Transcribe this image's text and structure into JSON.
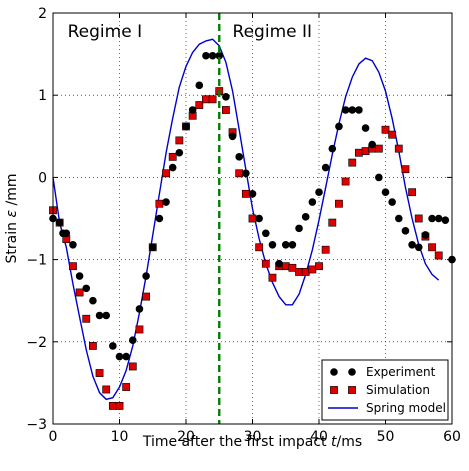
{
  "chart_data": {
    "type": "line",
    "title": "",
    "xlabel_text": "Time after the first impact ",
    "xlabel_symbol": "t",
    "xlabel_unit": "/ms",
    "ylabel_text": "Strain ",
    "ylabel_symbol": "ε",
    "ylabel_unit": " /mm",
    "xlim": [
      0,
      60
    ],
    "ylim": [
      -3,
      2
    ],
    "xticks": [
      "0",
      "10",
      "20",
      "30",
      "40",
      "50",
      "60"
    ],
    "yticks": [
      "−3",
      "−2",
      "−1",
      "0",
      "1",
      "2"
    ],
    "grid": true,
    "legend_position": "bottom-right",
    "divider": {
      "x": 25,
      "color": "#008000"
    },
    "regions": [
      {
        "label": "Regime I",
        "x": 2.2
      },
      {
        "label": "Regime II",
        "x": 27
      }
    ],
    "series": [
      {
        "name": "Experiment",
        "marker": "circle",
        "color": "#000000",
        "points": [
          [
            0,
            -0.5
          ],
          [
            1,
            -0.55
          ],
          [
            1.5,
            -0.68
          ],
          [
            2,
            -0.68
          ],
          [
            3,
            -0.82
          ],
          [
            4,
            -1.2
          ],
          [
            5,
            -1.35
          ],
          [
            6,
            -1.5
          ],
          [
            7,
            -1.68
          ],
          [
            8,
            -1.68
          ],
          [
            9,
            -2.05
          ],
          [
            10,
            -2.18
          ],
          [
            11,
            -2.18
          ],
          [
            12,
            -1.98
          ],
          [
            13,
            -1.6
          ],
          [
            14,
            -1.2
          ],
          [
            15,
            -0.85
          ],
          [
            16,
            -0.5
          ],
          [
            17,
            -0.3
          ],
          [
            18,
            0.12
          ],
          [
            19,
            0.3
          ],
          [
            20,
            0.62
          ],
          [
            21,
            0.82
          ],
          [
            22,
            1.12
          ],
          [
            23,
            1.48
          ],
          [
            24,
            1.48
          ],
          [
            25,
            1.48
          ],
          [
            26,
            0.98
          ],
          [
            27,
            0.5
          ],
          [
            28,
            0.25
          ],
          [
            29,
            0.05
          ],
          [
            30,
            -0.2
          ],
          [
            31,
            -0.5
          ],
          [
            32,
            -0.68
          ],
          [
            33,
            -0.82
          ],
          [
            34,
            -1.05
          ],
          [
            35,
            -0.82
          ],
          [
            36,
            -0.82
          ],
          [
            37,
            -0.62
          ],
          [
            38,
            -0.48
          ],
          [
            39,
            -0.3
          ],
          [
            40,
            -0.18
          ],
          [
            41,
            0.12
          ],
          [
            42,
            0.35
          ],
          [
            43,
            0.62
          ],
          [
            44,
            0.82
          ],
          [
            45,
            0.82
          ],
          [
            46,
            0.82
          ],
          [
            47,
            0.6
          ],
          [
            48,
            0.4
          ],
          [
            49,
            0.0
          ],
          [
            50,
            -0.18
          ],
          [
            51,
            -0.3
          ],
          [
            52,
            -0.5
          ],
          [
            53,
            -0.65
          ],
          [
            54,
            -0.82
          ],
          [
            55,
            -0.85
          ],
          [
            56,
            -0.7
          ],
          [
            57,
            -0.5
          ],
          [
            58,
            -0.5
          ],
          [
            59,
            -0.52
          ],
          [
            60,
            -1.0
          ]
        ]
      },
      {
        "name": "Simulation",
        "marker": "square",
        "color": "#dd0000",
        "points": [
          [
            0,
            -0.4
          ],
          [
            1,
            -0.55
          ],
          [
            2,
            -0.75
          ],
          [
            3,
            -1.08
          ],
          [
            4,
            -1.4
          ],
          [
            5,
            -1.72
          ],
          [
            6,
            -2.05
          ],
          [
            7,
            -2.38
          ],
          [
            8,
            -2.58
          ],
          [
            9,
            -2.78
          ],
          [
            10,
            -2.78
          ],
          [
            11,
            -2.55
          ],
          [
            12,
            -2.3
          ],
          [
            13,
            -1.85
          ],
          [
            14,
            -1.45
          ],
          [
            15,
            -0.85
          ],
          [
            16,
            -0.32
          ],
          [
            17,
            0.05
          ],
          [
            18,
            0.25
          ],
          [
            19,
            0.45
          ],
          [
            20,
            0.62
          ],
          [
            21,
            0.75
          ],
          [
            22,
            0.88
          ],
          [
            23,
            0.95
          ],
          [
            24,
            0.95
          ],
          [
            25,
            1.05
          ],
          [
            26,
            0.82
          ],
          [
            27,
            0.55
          ],
          [
            28,
            0.05
          ],
          [
            29,
            -0.2
          ],
          [
            30,
            -0.5
          ],
          [
            31,
            -0.85
          ],
          [
            32,
            -1.05
          ],
          [
            33,
            -1.22
          ],
          [
            34,
            -1.08
          ],
          [
            35,
            -1.08
          ],
          [
            36,
            -1.1
          ],
          [
            37,
            -1.15
          ],
          [
            38,
            -1.15
          ],
          [
            39,
            -1.12
          ],
          [
            40,
            -1.08
          ],
          [
            41,
            -0.88
          ],
          [
            42,
            -0.55
          ],
          [
            43,
            -0.32
          ],
          [
            44,
            -0.05
          ],
          [
            45,
            0.18
          ],
          [
            46,
            0.3
          ],
          [
            47,
            0.32
          ],
          [
            48,
            0.35
          ],
          [
            49,
            0.35
          ],
          [
            50,
            0.58
          ],
          [
            51,
            0.52
          ],
          [
            52,
            0.35
          ],
          [
            53,
            0.1
          ],
          [
            54,
            -0.18
          ],
          [
            55,
            -0.5
          ],
          [
            56,
            -0.72
          ],
          [
            57,
            -0.85
          ],
          [
            58,
            -0.95
          ]
        ]
      },
      {
        "name": "Spring model",
        "marker": "line",
        "color": "#0000cc",
        "points": [
          [
            0,
            0
          ],
          [
            1,
            -0.55
          ],
          [
            2,
            -0.85
          ],
          [
            3,
            -1.3
          ],
          [
            4,
            -1.7
          ],
          [
            5,
            -2.1
          ],
          [
            6,
            -2.42
          ],
          [
            7,
            -2.62
          ],
          [
            8,
            -2.7
          ],
          [
            9,
            -2.68
          ],
          [
            10,
            -2.55
          ],
          [
            11,
            -2.35
          ],
          [
            12,
            -2.05
          ],
          [
            13,
            -1.65
          ],
          [
            14,
            -1.2
          ],
          [
            15,
            -0.7
          ],
          [
            16,
            -0.2
          ],
          [
            17,
            0.3
          ],
          [
            18,
            0.72
          ],
          [
            19,
            1.1
          ],
          [
            20,
            1.35
          ],
          [
            21,
            1.52
          ],
          [
            22,
            1.62
          ],
          [
            23,
            1.66
          ],
          [
            24,
            1.68
          ],
          [
            25,
            1.6
          ],
          [
            26,
            1.4
          ],
          [
            27,
            1.05
          ],
          [
            28,
            0.58
          ],
          [
            29,
            0.1
          ],
          [
            30,
            -0.38
          ],
          [
            31,
            -0.75
          ],
          [
            32,
            -1.05
          ],
          [
            33,
            -1.28
          ],
          [
            34,
            -1.45
          ],
          [
            35,
            -1.55
          ],
          [
            36,
            -1.55
          ],
          [
            37,
            -1.42
          ],
          [
            38,
            -1.18
          ],
          [
            39,
            -0.88
          ],
          [
            40,
            -0.52
          ],
          [
            41,
            -0.12
          ],
          [
            42,
            0.28
          ],
          [
            43,
            0.65
          ],
          [
            44,
            0.98
          ],
          [
            45,
            1.22
          ],
          [
            46,
            1.38
          ],
          [
            47,
            1.45
          ],
          [
            48,
            1.42
          ],
          [
            49,
            1.28
          ],
          [
            50,
            1.05
          ],
          [
            51,
            0.72
          ],
          [
            52,
            0.32
          ],
          [
            53,
            -0.12
          ],
          [
            54,
            -0.5
          ],
          [
            55,
            -0.82
          ],
          [
            56,
            -1.05
          ],
          [
            57,
            -1.18
          ],
          [
            58,
            -1.25
          ]
        ]
      }
    ]
  }
}
